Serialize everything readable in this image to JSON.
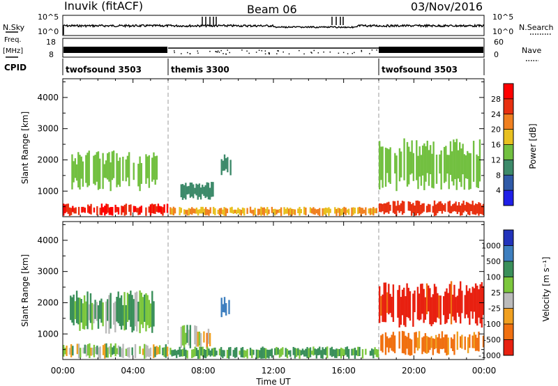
{
  "header": {
    "station": "Inuvik (fitACF)",
    "beam": "Beam 06",
    "date": "03/Nov/2016"
  },
  "side_labels": {
    "nsky": "N.Sky",
    "freq_line1": "Freq.",
    "freq_line2": "[MHz]",
    "cpid": "CPID",
    "nsearch": "N.Search",
    "nave": "Nave"
  },
  "tick_labels": {
    "nsky_top": "10^5",
    "nsky_bottom": "10^0",
    "nsearch_top": "10^5",
    "nsearch_bottom": "10^0",
    "freq_top": "18",
    "freq_bottom": "8",
    "nave_top": "60",
    "nave_bottom": "0"
  },
  "cpid_segments": [
    {
      "label": "twofsound 3503",
      "start_hour": 0
    },
    {
      "label": "themis 3300",
      "start_hour": 6
    },
    {
      "label": "twofsound 3503",
      "start_hour": 18
    }
  ],
  "x_axis": {
    "label": "Time UT",
    "tick_labels": [
      "00:00",
      "04:00",
      "08:00",
      "12:00",
      "16:00",
      "20:00",
      "00:00"
    ],
    "range_hours": [
      0,
      24
    ]
  },
  "power_panel": {
    "ylabel": "Slant Range [km]",
    "yticks": [
      "1000",
      "2000",
      "3000",
      "4000"
    ],
    "colorbar_label": "Power [dB]",
    "colorbar_ticks": [
      "4",
      "8",
      "12",
      "16",
      "20",
      "24",
      "28"
    ],
    "colors": [
      "#1f1fe8",
      "#2f5aa8",
      "#3d8a6a",
      "#72c040",
      "#e8c020",
      "#f08020",
      "#e83010",
      "#ff0000"
    ]
  },
  "velocity_panel": {
    "ylabel": "Slant Range [km]",
    "yticks": [
      "1000",
      "2000",
      "3000",
      "4000"
    ],
    "colorbar_label": "Velocity [m s⁻¹]",
    "colorbar_ticks": [
      "1000",
      "500",
      "100",
      "25",
      "-25",
      "-100",
      "-500",
      "-1000"
    ],
    "colors": [
      "#2233bb",
      "#3e7fbf",
      "#3a8f5a",
      "#7cc73d",
      "#bbbbbb",
      "#f0a020",
      "#f07010",
      "#e82010"
    ]
  },
  "chart_data": [
    {
      "type": "heatmap",
      "title": "Power",
      "xlabel": "Time UT",
      "ylabel": "Slant Range [km]",
      "xlim": [
        0,
        24
      ],
      "ylim": [
        180,
        4600
      ],
      "zlabel": "Power [dB]",
      "zlim": [
        0,
        32
      ],
      "regions": [
        {
          "t": [
            0,
            6
          ],
          "r": [
            200,
            600
          ],
          "z": 28
        },
        {
          "t": [
            0.4,
            5.4
          ],
          "r": [
            1000,
            2300
          ],
          "z": 14
        },
        {
          "t": [
            6.7,
            8.6
          ],
          "r": [
            700,
            1300
          ],
          "z": 10
        },
        {
          "t": [
            9,
            9.6
          ],
          "r": [
            1500,
            2200
          ],
          "z": 10
        },
        {
          "t": [
            6,
            18
          ],
          "r": [
            200,
            500
          ],
          "z": 20
        },
        {
          "t": [
            18,
            24
          ],
          "r": [
            200,
            700
          ],
          "z": 26
        },
        {
          "t": [
            18,
            23.8
          ],
          "r": [
            1000,
            2700
          ],
          "z": 14
        }
      ]
    },
    {
      "type": "heatmap",
      "title": "Velocity",
      "xlabel": "Time UT",
      "ylabel": "Slant Range [km]",
      "xlim": [
        0,
        24
      ],
      "ylim": [
        180,
        4600
      ],
      "zlabel": "Velocity [m s^-1]",
      "zlim": [
        -1000,
        1000
      ],
      "regions": [
        {
          "t": [
            0,
            6
          ],
          "r": [
            200,
            700
          ],
          "z": 50
        },
        {
          "t": [
            0.4,
            5.4
          ],
          "r": [
            1000,
            2400
          ],
          "z": 100
        },
        {
          "t": [
            6.7,
            8.6
          ],
          "r": [
            500,
            1300
          ],
          "z": 0
        },
        {
          "t": [
            9,
            9.6
          ],
          "r": [
            1500,
            2200
          ],
          "z": 800
        },
        {
          "t": [
            6,
            18
          ],
          "r": [
            200,
            600
          ],
          "z": 150
        },
        {
          "t": [
            18,
            24
          ],
          "r": [
            1200,
            2700
          ],
          "z": -600
        },
        {
          "t": [
            18,
            24
          ],
          "r": [
            300,
            1100
          ],
          "z": -150
        }
      ]
    }
  ]
}
